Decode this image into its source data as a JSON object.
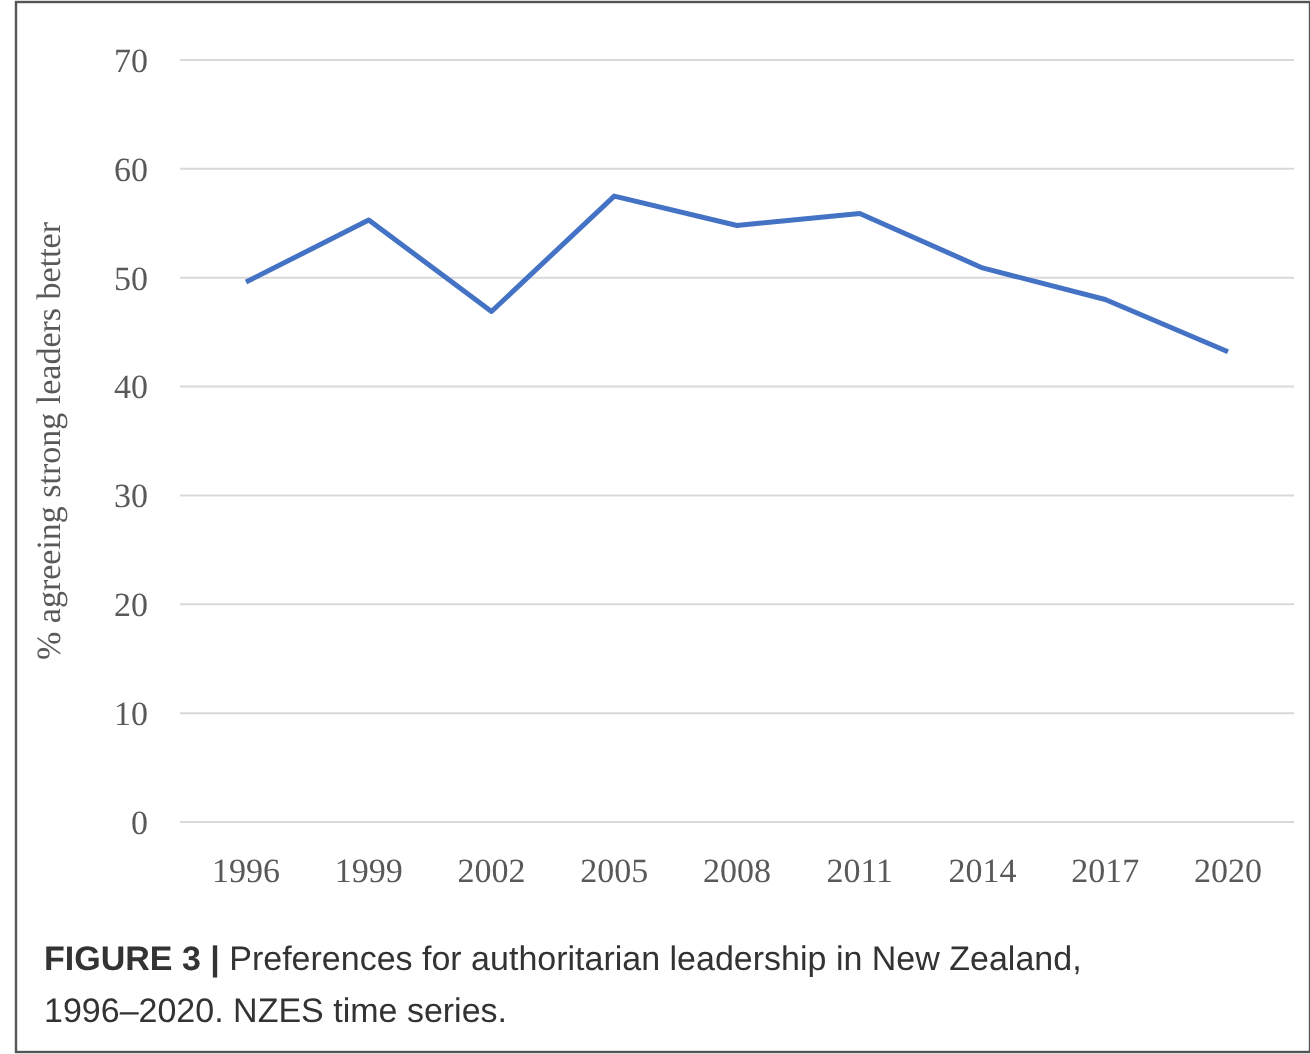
{
  "chart_data": {
    "type": "line",
    "ylabel": "% agreeing strong leaders better",
    "categories": [
      "1996",
      "1999",
      "2002",
      "2005",
      "2008",
      "2011",
      "2014",
      "2017",
      "2020"
    ],
    "series": [
      {
        "color": "#4472c4",
        "values": [
          49.6,
          55.3,
          46.9,
          57.5,
          54.8,
          55.9,
          50.9,
          48.0,
          43.2
        ]
      }
    ],
    "ylim": [
      0,
      70
    ],
    "yticks": [
      0,
      10,
      20,
      30,
      40,
      50,
      60,
      70
    ],
    "grid": "y",
    "marker": "none",
    "line_style": "solid",
    "annotations": [
      "FIGURE 3 | Preferences for authoritarian leadership in New Zealand, 1996–2020. NZES time series."
    ]
  }
}
